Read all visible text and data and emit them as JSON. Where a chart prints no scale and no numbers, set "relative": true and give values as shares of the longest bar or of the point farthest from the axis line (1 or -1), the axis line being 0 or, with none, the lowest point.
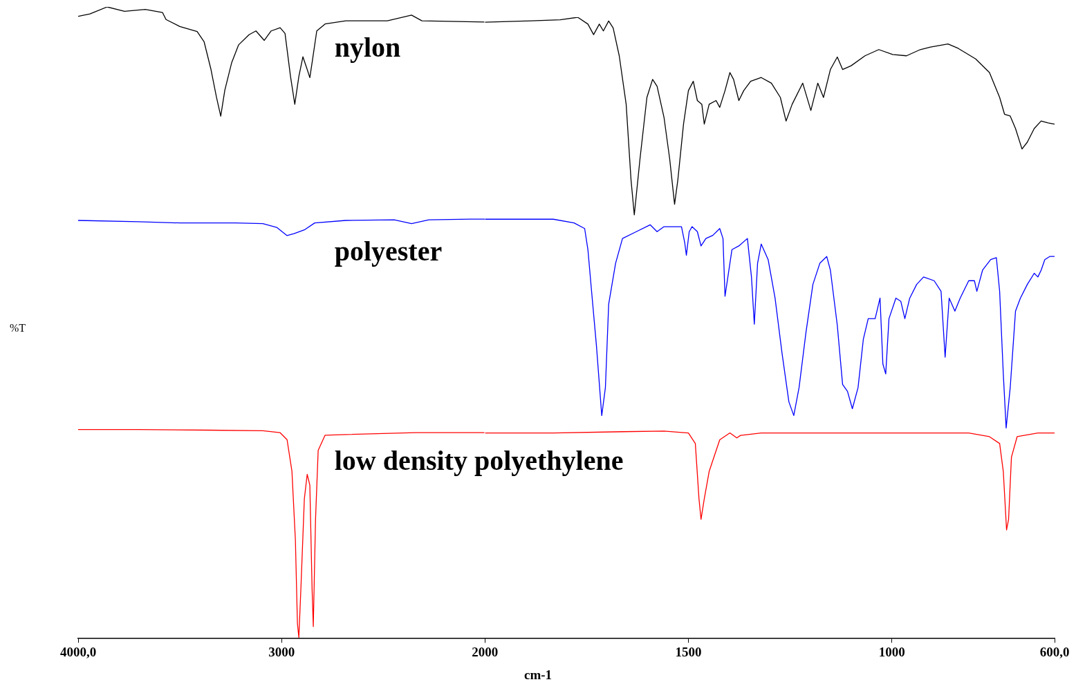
{
  "chart_data": [
    {
      "type": "line",
      "relative": true,
      "ylabel": "%T",
      "xlim": [
        4000,
        2000
      ],
      "xticks": [
        {
          "value": 4000,
          "label": "4000,0"
        },
        3000,
        2000
      ],
      "series": [
        {
          "name": "nylon",
          "color": "#000000",
          "x": [
            4000,
            3942,
            3857,
            3772,
            3670,
            3585,
            3568,
            3500,
            3415,
            3381,
            3347,
            3320,
            3299,
            3279,
            3245,
            3211,
            3160,
            3126,
            3085,
            3051,
            3007,
            2983,
            2956,
            2935,
            2915,
            2895,
            2874,
            2861,
            2847,
            2827,
            2786,
            2684,
            2480,
            2361,
            2310,
            2003
          ],
          "values": [
            0.985,
            0.989,
            1.0,
            0.993,
            0.996,
            0.991,
            0.98,
            0.969,
            0.961,
            0.945,
            0.901,
            0.857,
            0.827,
            0.868,
            0.912,
            0.94,
            0.956,
            0.962,
            0.947,
            0.962,
            0.967,
            0.958,
            0.89,
            0.846,
            0.89,
            0.921,
            0.901,
            0.888,
            0.918,
            0.962,
            0.973,
            0.978,
            0.978,
            0.987,
            0.978,
            0.976
          ]
        },
        {
          "name": "polyester",
          "color": "#0000ff",
          "x": [
            4000,
            3704,
            3500,
            3228,
            3092,
            3024,
            2973,
            2939,
            2888,
            2837,
            2684,
            2446,
            2361,
            2276,
            2071,
            2000
          ],
          "values": [
            0.662,
            0.66,
            0.658,
            0.658,
            0.657,
            0.651,
            0.638,
            0.641,
            0.647,
            0.658,
            0.662,
            0.663,
            0.657,
            0.663,
            0.664,
            0.664
          ]
        },
        {
          "name": "low density polyethylene",
          "color": "#ff0000",
          "x": [
            4000,
            3704,
            3364,
            3092,
            3007,
            2973,
            2949,
            2932,
            2922,
            2915,
            2905,
            2888,
            2874,
            2861,
            2850,
            2844,
            2833,
            2820,
            2786,
            2684,
            2343,
            2003
          ],
          "values": [
            0.331,
            0.331,
            0.33,
            0.329,
            0.326,
            0.315,
            0.265,
            0.156,
            0.024,
            0.002,
            0.079,
            0.221,
            0.26,
            0.243,
            0.079,
            0.019,
            0.189,
            0.298,
            0.322,
            0.323,
            0.326,
            0.326
          ]
        }
      ]
    },
    {
      "type": "line",
      "relative": true,
      "xlabel": "cm-1",
      "xlim": [
        2000,
        600
      ],
      "xticks": [
        {
          "value": 2000,
          "label": null
        },
        1500,
        1000,
        {
          "value": 600,
          "label": "600,0"
        }
      ],
      "series": [
        {
          "color": "#000000",
          "x": [
            2000,
            1900,
            1815,
            1772,
            1747,
            1733,
            1719,
            1709,
            1696,
            1685,
            1670,
            1653,
            1641,
            1633,
            1619,
            1602,
            1588,
            1577,
            1560,
            1546,
            1534,
            1526,
            1512,
            1500,
            1488,
            1478,
            1467,
            1461,
            1449,
            1432,
            1423,
            1410,
            1398,
            1389,
            1376,
            1364,
            1347,
            1321,
            1296,
            1274,
            1260,
            1245,
            1219,
            1199,
            1182,
            1168,
            1151,
            1134,
            1121,
            1100,
            1066,
            1032,
            998,
            964,
            930,
            905,
            862,
            837,
            794,
            760,
            735,
            723,
            709,
            696,
            680,
            667,
            650,
            633,
            616,
            600
          ],
          "values": [
            0.992,
            0.994,
            0.996,
            1.0,
            0.989,
            0.972,
            0.989,
            0.978,
            0.994,
            0.983,
            0.938,
            0.86,
            0.738,
            0.682,
            0.772,
            0.871,
            0.9,
            0.889,
            0.839,
            0.772,
            0.699,
            0.738,
            0.828,
            0.882,
            0.897,
            0.866,
            0.86,
            0.828,
            0.86,
            0.866,
            0.855,
            0.882,
            0.911,
            0.9,
            0.866,
            0.882,
            0.897,
            0.903,
            0.894,
            0.871,
            0.833,
            0.86,
            0.894,
            0.85,
            0.894,
            0.871,
            0.916,
            0.936,
            0.916,
            0.922,
            0.938,
            0.948,
            0.94,
            0.938,
            0.948,
            0.952,
            0.957,
            0.95,
            0.933,
            0.911,
            0.871,
            0.844,
            0.841,
            0.821,
            0.788,
            0.799,
            0.821,
            0.833,
            0.83,
            0.828
          ]
        },
        {
          "color": "#0000ff",
          "x": [
            2000,
            1934,
            1832,
            1781,
            1755,
            1747,
            1738,
            1726,
            1713,
            1704,
            1696,
            1679,
            1662,
            1628,
            1594,
            1577,
            1560,
            1517,
            1509,
            1505,
            1498,
            1491,
            1478,
            1469,
            1457,
            1440,
            1423,
            1415,
            1410,
            1403,
            1393,
            1376,
            1355,
            1345,
            1338,
            1330,
            1321,
            1304,
            1287,
            1270,
            1253,
            1241,
            1228,
            1211,
            1194,
            1177,
            1160,
            1151,
            1134,
            1121,
            1109,
            1097,
            1083,
            1070,
            1058,
            1041,
            1029,
            1022,
            1015,
            1007,
            990,
            978,
            968,
            956,
            939,
            922,
            896,
            879,
            869,
            859,
            845,
            832,
            811,
            797,
            791,
            777,
            757,
            743,
            735,
            726,
            719,
            709,
            696,
            684,
            667,
            650,
            641,
            633,
            624,
            612,
            600
          ],
          "values": [
            0.675,
            0.675,
            0.675,
            0.669,
            0.66,
            0.626,
            0.559,
            0.471,
            0.359,
            0.404,
            0.538,
            0.604,
            0.644,
            0.655,
            0.666,
            0.655,
            0.663,
            0.663,
            0.637,
            0.617,
            0.655,
            0.663,
            0.655,
            0.632,
            0.644,
            0.649,
            0.66,
            0.644,
            0.551,
            0.582,
            0.626,
            0.632,
            0.644,
            0.582,
            0.506,
            0.604,
            0.635,
            0.61,
            0.548,
            0.46,
            0.381,
            0.359,
            0.404,
            0.493,
            0.57,
            0.604,
            0.615,
            0.593,
            0.504,
            0.409,
            0.398,
            0.37,
            0.404,
            0.482,
            0.515,
            0.515,
            0.548,
            0.442,
            0.426,
            0.515,
            0.548,
            0.543,
            0.515,
            0.548,
            0.57,
            0.582,
            0.576,
            0.559,
            0.453,
            0.548,
            0.527,
            0.548,
            0.576,
            0.576,
            0.559,
            0.593,
            0.61,
            0.613,
            0.559,
            0.426,
            0.339,
            0.404,
            0.527,
            0.548,
            0.57,
            0.588,
            0.582,
            0.593,
            0.61,
            0.615,
            0.615
          ]
        },
        {
          "color": "#ff0000",
          "x": [
            2000,
            1832,
            1662,
            1560,
            1500,
            1483,
            1474,
            1469,
            1461,
            1449,
            1423,
            1398,
            1381,
            1372,
            1321,
            1151,
            981,
            811,
            760,
            735,
            726,
            718,
            713,
            706,
            692,
            641,
            600
          ],
          "values": [
            0.331,
            0.331,
            0.333,
            0.334,
            0.331,
            0.314,
            0.225,
            0.192,
            0.225,
            0.269,
            0.32,
            0.331,
            0.323,
            0.327,
            0.331,
            0.331,
            0.331,
            0.331,
            0.325,
            0.314,
            0.269,
            0.175,
            0.192,
            0.292,
            0.325,
            0.331,
            0.331
          ]
        }
      ]
    }
  ]
}
